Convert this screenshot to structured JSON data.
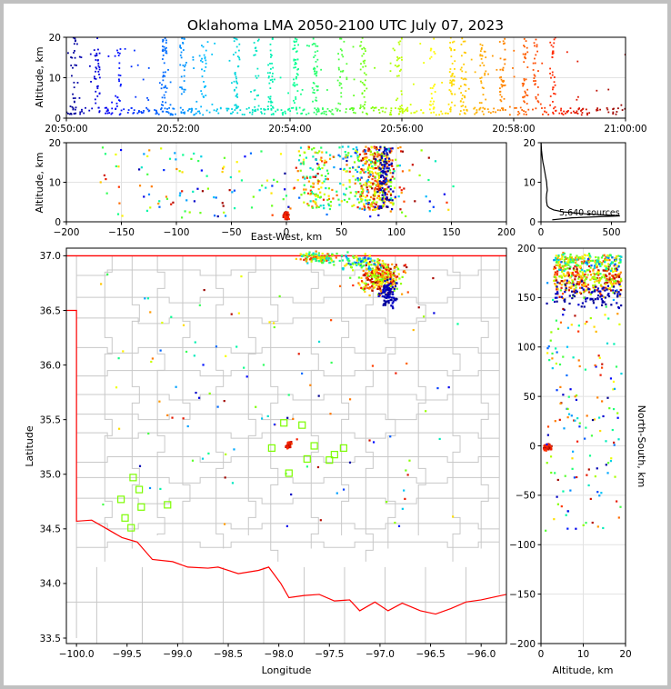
{
  "title": "Oklahoma LMA 2050-2100 UTC July 07, 2023",
  "colors": {
    "state_border": "#ff0000",
    "county_lines": "#c8c8c8",
    "stations": "#7cfc00",
    "histogram": "#000000"
  },
  "chart_data": [
    {
      "id": "time-altitude",
      "type": "scatter",
      "xlabel": "",
      "ylabel": "Altitude, km",
      "x_range": [
        "20:50:00",
        "21:00:00"
      ],
      "xticks": [
        "20:50:00",
        "20:52:00",
        "20:54:00",
        "20:56:00",
        "20:58:00",
        "21:00:00"
      ],
      "ylim": [
        0,
        20
      ],
      "yticks": [
        "0",
        "10",
        "20"
      ],
      "grid": true,
      "color_by": "time",
      "source_columns_min": [
        0.12,
        0.55,
        0.92,
        1.75,
        2.08,
        2.45,
        3.05,
        3.4,
        3.65,
        4.1,
        4.45,
        4.9,
        5.3,
        5.95,
        6.55,
        6.9,
        7.1,
        7.45,
        7.8,
        8.2,
        8.4,
        8.7
      ]
    },
    {
      "id": "ew-altitude",
      "type": "scatter",
      "xlabel": "East-West, km",
      "ylabel": "Altitude, km",
      "xlim": [
        -200,
        200
      ],
      "xticks": [
        "−200",
        "−150",
        "−100",
        "−50",
        "0",
        "50",
        "100",
        "150",
        "200"
      ],
      "ylim": [
        0,
        20
      ],
      "yticks": [
        "0",
        "10",
        "20"
      ],
      "grid": true
    },
    {
      "id": "altitude-histogram",
      "type": "line",
      "xlim": [
        0,
        600
      ],
      "xticks": [
        "0",
        "500"
      ],
      "ylim": [
        0,
        20
      ],
      "yticks": [
        "0",
        "10",
        "20"
      ],
      "annotation": "5,640 sources",
      "profile": [
        [
          0.5,
          80
        ],
        [
          1,
          220
        ],
        [
          1.5,
          560
        ],
        [
          2,
          320
        ],
        [
          2.5,
          160
        ],
        [
          3,
          90
        ],
        [
          3.5,
          60
        ],
        [
          4,
          45
        ],
        [
          5,
          40
        ],
        [
          6,
          38
        ],
        [
          7,
          40
        ],
        [
          8,
          45
        ],
        [
          9,
          42
        ],
        [
          10,
          40
        ],
        [
          11,
          35
        ],
        [
          12,
          30
        ],
        [
          13,
          25
        ],
        [
          14,
          20
        ],
        [
          15,
          14
        ],
        [
          16,
          10
        ],
        [
          17,
          7
        ],
        [
          18,
          4
        ],
        [
          19,
          2
        ],
        [
          20,
          1
        ]
      ]
    },
    {
      "id": "plan-view",
      "type": "scatter",
      "xlabel": "Longitude",
      "ylabel": "Latitude",
      "xlim": [
        -100.1,
        -95.75
      ],
      "xticks": [
        "−100.0",
        "−99.5",
        "−99.0",
        "−98.5",
        "−98.0",
        "−97.5",
        "−97.0",
        "−96.5",
        "−96.0"
      ],
      "ylim": [
        33.45,
        37.07
      ],
      "yticks": [
        "33.5",
        "34.0",
        "34.5",
        "35.0",
        "35.5",
        "36.0",
        "36.5",
        "37.0"
      ],
      "stations": [
        [
          -99.44,
          34.97
        ],
        [
          -99.38,
          34.86
        ],
        [
          -99.56,
          34.77
        ],
        [
          -99.36,
          34.7
        ],
        [
          -99.52,
          34.6
        ],
        [
          -99.46,
          34.51
        ],
        [
          -99.1,
          34.72
        ],
        [
          -97.95,
          35.47
        ],
        [
          -97.77,
          35.45
        ],
        [
          -98.07,
          35.24
        ],
        [
          -97.9,
          35.01
        ],
        [
          -97.72,
          35.14
        ],
        [
          -97.65,
          35.26
        ],
        [
          -97.5,
          35.13
        ],
        [
          -97.45,
          35.18
        ],
        [
          -97.36,
          35.24
        ]
      ]
    },
    {
      "id": "altitude-ns",
      "type": "scatter",
      "xlabel": "Altitude, km",
      "ylabel": "North-South, km",
      "xlim": [
        0,
        20
      ],
      "xticks": [
        "0",
        "10",
        "20"
      ],
      "ylim": [
        -200,
        200
      ],
      "yticks": [
        "−200",
        "−150",
        "−100",
        "−50",
        "0",
        "50",
        "100",
        "150",
        "200"
      ],
      "grid": true
    }
  ]
}
